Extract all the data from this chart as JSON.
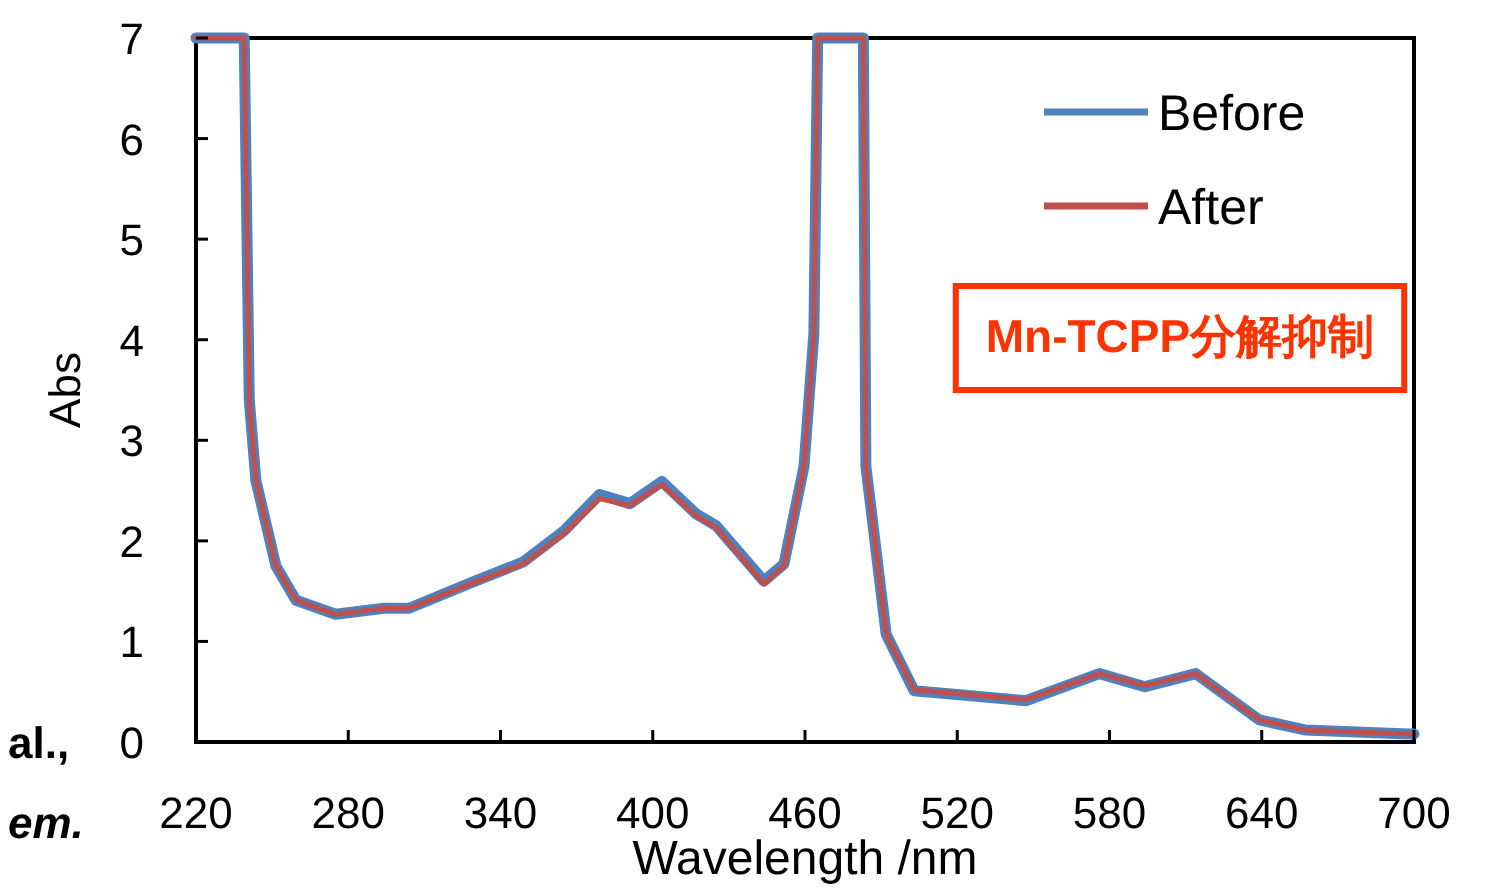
{
  "chart_data": {
    "type": "line",
    "xlabel": "Wavelength /nm",
    "ylabel": "Abs",
    "xlim": [
      220,
      700
    ],
    "xticks": [
      220,
      280,
      340,
      400,
      460,
      520,
      580,
      640,
      700
    ],
    "ylim": [
      0,
      7
    ],
    "yticks": [
      0,
      1,
      2,
      3,
      4,
      5,
      6,
      7
    ],
    "x": [
      220,
      239,
      241,
      243.6,
      251.5,
      259.4,
      275,
      294,
      304,
      328,
      349,
      365,
      379,
      391,
      403.6,
      417,
      425,
      443.8,
      451.7,
      459.6,
      463.5,
      465,
      483,
      484,
      492,
      503,
      521,
      547,
      576,
      594,
      614,
      639,
      657,
      698,
      700
    ],
    "series": [
      {
        "name": "Before",
        "color": "#4f81bd",
        "values": [
          7,
          7,
          3.4,
          2.6,
          1.75,
          1.41,
          1.27,
          1.33,
          1.33,
          1.58,
          1.79,
          2.1,
          2.46,
          2.37,
          2.59,
          2.27,
          2.15,
          1.6,
          1.77,
          2.74,
          4.06,
          7,
          7,
          2.74,
          1.07,
          0.51,
          0.47,
          0.41,
          0.68,
          0.55,
          0.68,
          0.22,
          0.12,
          0.08,
          0.08
        ]
      },
      {
        "name": "After",
        "color": "#c0504d",
        "values": [
          7,
          7,
          3.4,
          2.6,
          1.75,
          1.41,
          1.27,
          1.33,
          1.33,
          1.57,
          1.77,
          2.07,
          2.42,
          2.35,
          2.56,
          2.25,
          2.13,
          1.57,
          1.75,
          2.74,
          4.06,
          7,
          7,
          2.74,
          1.07,
          0.52,
          0.48,
          0.42,
          0.68,
          0.56,
          0.68,
          0.22,
          0.12,
          0.08,
          0.08
        ]
      }
    ],
    "legend": "top right",
    "grid": false,
    "line_style": "solid",
    "annotations": [
      "Mn-TCPP分解抑制",
      "al.,",
      "em."
    ]
  }
}
